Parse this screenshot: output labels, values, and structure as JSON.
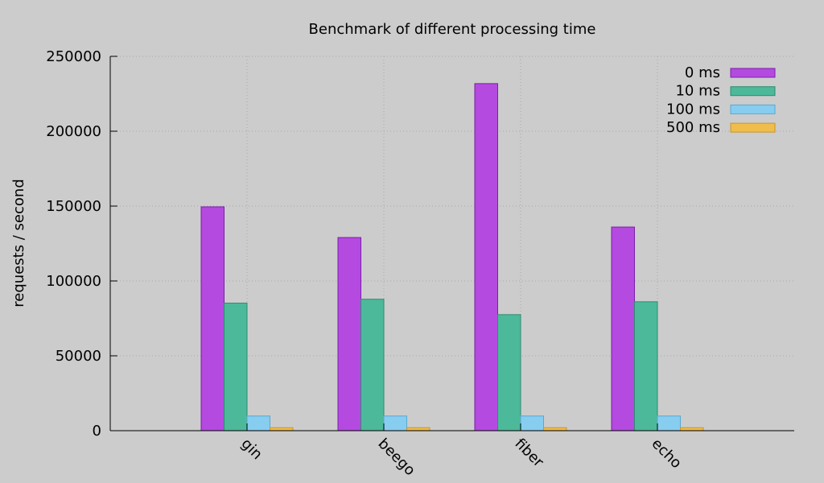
{
  "chart_data": {
    "type": "bar",
    "title": "Benchmark of different processing time",
    "xlabel": "",
    "ylabel": "requests / second",
    "categories": [
      "gin",
      "beego",
      "fiber",
      "echo"
    ],
    "series": [
      {
        "name": "0 ms",
        "values": [
          149500,
          129000,
          231800,
          136000
        ],
        "color": "#b44ae0"
      },
      {
        "name": "10 ms",
        "values": [
          85200,
          87800,
          77500,
          86100
        ],
        "color": "#4cb99a"
      },
      {
        "name": "100 ms",
        "values": [
          9800,
          9800,
          9800,
          9800
        ],
        "color": "#87cdf0"
      },
      {
        "name": "500 ms",
        "values": [
          2000,
          2000,
          2000,
          2000
        ],
        "color": "#f0bd4c"
      }
    ],
    "ylim": [
      0,
      250000
    ],
    "yticks": [
      "0",
      "50000",
      "100000",
      "150000",
      "200000",
      "250000"
    ],
    "grid": true,
    "legend_position": "top-right",
    "background": "#cccccc"
  }
}
